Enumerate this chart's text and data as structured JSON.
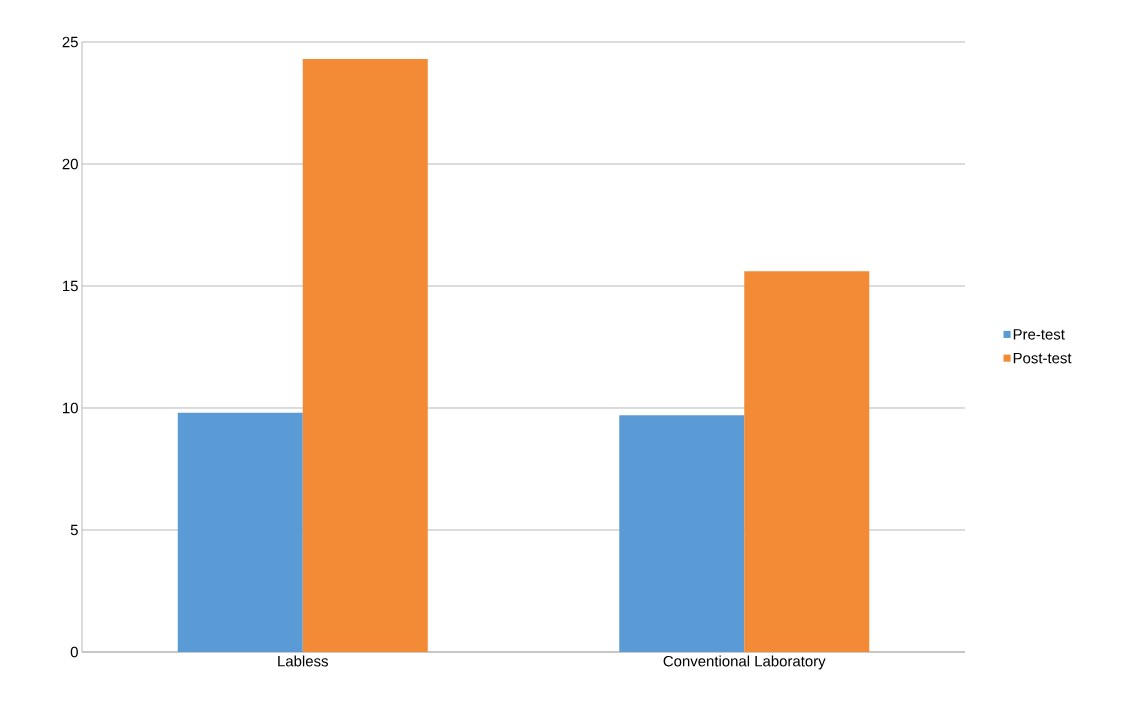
{
  "chart_data": {
    "type": "bar",
    "categories": [
      "Labless",
      "Conventional Laboratory"
    ],
    "series": [
      {
        "name": "Pre-test",
        "color": "#5b9bd5",
        "values": [
          9.8,
          9.7
        ]
      },
      {
        "name": "Post-test",
        "color": "#f28a36",
        "values": [
          24.3,
          15.6
        ]
      }
    ],
    "ylim": [
      0,
      25
    ],
    "yticks": [
      0,
      5,
      10,
      15,
      20,
      25
    ],
    "grid": "y",
    "legend": "right"
  }
}
